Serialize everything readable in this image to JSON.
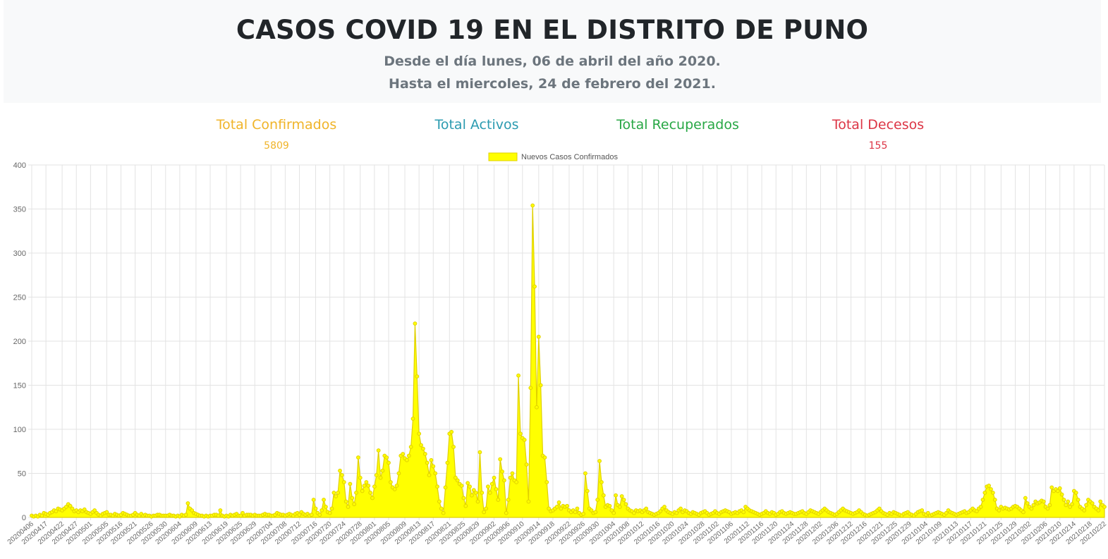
{
  "header": {
    "title": "CASOS COVID 19 EN EL DISTRITO DE PUNO",
    "subtitle_1": "Desde el día lunes, 06 de abril del año 2020.",
    "subtitle_2": "Hasta el miercoles, 24 de febrero del 2021."
  },
  "stats": [
    {
      "label": "Total Confirmados",
      "value": "5809",
      "color": "#f0b429"
    },
    {
      "label": "Total Activos",
      "value": "",
      "color": "#2b9bb0"
    },
    {
      "label": "Total Recuperados",
      "value": "",
      "color": "#28a745"
    },
    {
      "label": "Total Decesos",
      "value": "155",
      "color": "#dc3545"
    }
  ],
  "chart_data": {
    "type": "area",
    "series": [
      {
        "name": "Nuevos Casos Confirmados",
        "fill": "#ffff00",
        "stroke": "#e0d000",
        "values": [
          2,
          1,
          2,
          1,
          3,
          2,
          5,
          4,
          3,
          5,
          6,
          8,
          7,
          10,
          9,
          8,
          10,
          12,
          15,
          13,
          10,
          7,
          8,
          6,
          8,
          7,
          9,
          6,
          5,
          4,
          6,
          8,
          5,
          3,
          2,
          4,
          5,
          6,
          3,
          3,
          2,
          4,
          3,
          2,
          3,
          5,
          4,
          3,
          2,
          2,
          3,
          5,
          3,
          2,
          4,
          2,
          3,
          2,
          2,
          1,
          2,
          2,
          3,
          3,
          2,
          2,
          2,
          2,
          3,
          2,
          2,
          1,
          2,
          1,
          3,
          2,
          3,
          16,
          10,
          8,
          5,
          4,
          3,
          2,
          2,
          1,
          2,
          1,
          2,
          2,
          3,
          3,
          2,
          8,
          2,
          1,
          2,
          1,
          3,
          2,
          3,
          4,
          2,
          2,
          5,
          2,
          3,
          3,
          3,
          2,
          3,
          2,
          2,
          2,
          3,
          4,
          3,
          3,
          2,
          2,
          3,
          5,
          4,
          3,
          3,
          2,
          3,
          4,
          3,
          2,
          4,
          5,
          3,
          6,
          4,
          3,
          4,
          2,
          3,
          20,
          10,
          5,
          3,
          8,
          20,
          12,
          6,
          5,
          10,
          28,
          24,
          28,
          53,
          48,
          40,
          18,
          12,
          38,
          22,
          15,
          28,
          68,
          45,
          30,
          36,
          40,
          36,
          28,
          22,
          35,
          48,
          76,
          45,
          53,
          70,
          68,
          62,
          40,
          34,
          32,
          36,
          50,
          70,
          72,
          67,
          65,
          70,
          80,
          112,
          220,
          160,
          95,
          82,
          78,
          72,
          62,
          48,
          65,
          58,
          50,
          35,
          18,
          10,
          5,
          34,
          62,
          95,
          97,
          80,
          45,
          42,
          38,
          36,
          22,
          13,
          39,
          35,
          25,
          31,
          28,
          18,
          74,
          28,
          6,
          10,
          35,
          28,
          38,
          45,
          32,
          20,
          66,
          52,
          42,
          5,
          20,
          45,
          50,
          42,
          40,
          161,
          95,
          90,
          88,
          60,
          18,
          147,
          354,
          262,
          125,
          205,
          150,
          70,
          68,
          40,
          10,
          7,
          8,
          10,
          12,
          17,
          10,
          13,
          12,
          13,
          8,
          6,
          8,
          6,
          10,
          5,
          3,
          4,
          50,
          30,
          10,
          8,
          5,
          6,
          20,
          64,
          40,
          25,
          12,
          14,
          13,
          8,
          5,
          25,
          14,
          12,
          24,
          20,
          15,
          10,
          8,
          7,
          5,
          8,
          7,
          8,
          6,
          8,
          10,
          6,
          5,
          4,
          3,
          4,
          5,
          7,
          10,
          12,
          8,
          6,
          5,
          4,
          6,
          5,
          8,
          10,
          6,
          8,
          7,
          5,
          4,
          6,
          5,
          4,
          3,
          5,
          6,
          7,
          5,
          3,
          4,
          5,
          7,
          5,
          4,
          6,
          7,
          8,
          7,
          6,
          4,
          5,
          6,
          5,
          7,
          8,
          6,
          12,
          10,
          8,
          7,
          6,
          5,
          4,
          3,
          4,
          5,
          7,
          5,
          4,
          6,
          5,
          3,
          4,
          6,
          7,
          5,
          4,
          5,
          6,
          5,
          4,
          4,
          5,
          6,
          7,
          5,
          4,
          6,
          8,
          7,
          6,
          5,
          4,
          6,
          8,
          10,
          8,
          6,
          5,
          4,
          3,
          4,
          6,
          8,
          10,
          8,
          7,
          6,
          5,
          4,
          5,
          6,
          8,
          6,
          4,
          3,
          2,
          3,
          4,
          5,
          6,
          8,
          10,
          7,
          5,
          4,
          3,
          5,
          4,
          6,
          5,
          4,
          3,
          2,
          4,
          5,
          6,
          4,
          3,
          2,
          4,
          6,
          7,
          8,
          4,
          3,
          5,
          2,
          3,
          4,
          5,
          6,
          5,
          4,
          3,
          5,
          8,
          6,
          5,
          4,
          3,
          4,
          5,
          6,
          7,
          5,
          6,
          8,
          10,
          8,
          7,
          10,
          12,
          20,
          28,
          35,
          36,
          32,
          28,
          20,
          10,
          8,
          12,
          10,
          11,
          10,
          9,
          10,
          12,
          13,
          12,
          10,
          8,
          6,
          22,
          16,
          12,
          10,
          14,
          18,
          16,
          17,
          19,
          18,
          12,
          10,
          14,
          34,
          30,
          32,
          30,
          33,
          26,
          20,
          14,
          18,
          12,
          15,
          30,
          28,
          20,
          12,
          10,
          8,
          14,
          20,
          18,
          16,
          12,
          10,
          8,
          18,
          14,
          12
        ]
      }
    ],
    "ylim": [
      0,
      400
    ],
    "yticks": [
      0,
      50,
      100,
      150,
      200,
      250,
      300,
      350,
      400
    ],
    "xtick_labels": [
      "20200406",
      "20200417",
      "20200422",
      "20200427",
      "20200501",
      "20200505",
      "20200516",
      "20200521",
      "20200526",
      "20200530",
      "20200604",
      "20200609",
      "20200613",
      "20200619",
      "20200625",
      "20200629",
      "20200704",
      "20200708",
      "20200712",
      "20200716",
      "20200720",
      "20200724",
      "20200728",
      "20200801",
      "20200805",
      "20200809",
      "20200813",
      "20200817",
      "20200821",
      "20200825",
      "20200829",
      "20200902",
      "20200906",
      "20200910",
      "20200914",
      "20200918",
      "20200922",
      "20200926",
      "20200930",
      "20201004",
      "20201008",
      "20201012",
      "20201016",
      "20201020",
      "20201024",
      "20201028",
      "20201102",
      "20201106",
      "20201112",
      "20201116",
      "20201120",
      "20201124",
      "20201128",
      "20201202",
      "20201206",
      "20201212",
      "20201216",
      "20201221",
      "20201225",
      "20201229",
      "20210104",
      "20210109",
      "20210113",
      "20210117",
      "20210121",
      "20210125",
      "20210129",
      "20210202",
      "20210206",
      "20210210",
      "20210214",
      "20210218",
      "20210222"
    ],
    "grid": true,
    "legend_position": "top"
  }
}
